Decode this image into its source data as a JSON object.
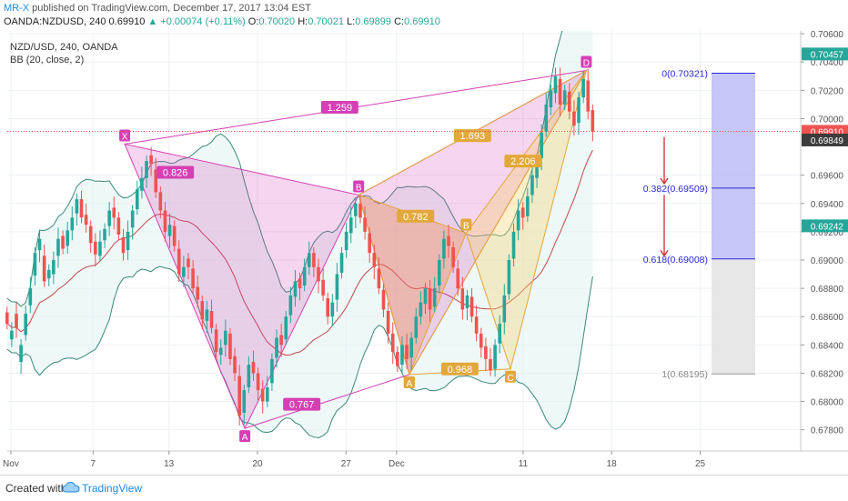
{
  "header": {
    "author": "MR-X",
    "published": " published on TradingView.com, December 17, 2017 13:04 EST",
    "symbol": "OANDA:NZDUSD, 240",
    "last": "0.69910",
    "change": "+0.00074 (+0.11%)",
    "o_label": "O:",
    "o": "0.70020",
    "h_label": "H:",
    "h": "0.70021",
    "l_label": "L:",
    "l": "0.69899",
    "c_label": "C:",
    "c": "0.69910"
  },
  "footer": {
    "created": "Created with",
    "brand": "TradingView"
  },
  "colors": {
    "up": "#26a69a",
    "down": "#ef5350",
    "pattern": "#d63fb4",
    "bat": "#e5a63a",
    "axis_hl": "#26a69a",
    "price_tag": "#ef5350",
    "fib_blue": "#2a2ad2"
  },
  "chart_data": {
    "type": "candlestick",
    "title": "NZD/USD, 240, OANDA",
    "indicator": "BB (20, close, 2)",
    "yaxis": {
      "min": 0.6765,
      "max": 0.7062,
      "ticks": [
        "0.70600",
        "0.70400",
        "0.70200",
        "0.70000",
        "0.69600",
        "0.69400",
        "0.69200",
        "0.69000",
        "0.68800",
        "0.68600",
        "0.68400",
        "0.68200",
        "0.68000",
        "0.67800"
      ]
    },
    "xaxis": {
      "ticks": [
        {
          "label": "Nov",
          "day": 0.5
        },
        {
          "label": "7",
          "day": 7
        },
        {
          "label": "13",
          "day": 13
        },
        {
          "label": "20",
          "day": 20
        },
        {
          "label": "27",
          "day": 27
        },
        {
          "label": "Dec",
          "day": 31
        },
        {
          "label": "11",
          "day": 41
        },
        {
          "label": "18",
          "day": 48
        },
        {
          "label": "25",
          "day": 55
        }
      ]
    },
    "price_labels": [
      {
        "text": "0.70457",
        "value": 0.70457,
        "kind": "green"
      },
      {
        "text": "0.69910",
        "value": 0.6991,
        "kind": "red"
      },
      {
        "text": "0.69849",
        "value": 0.69849,
        "kind": "dark"
      },
      {
        "text": "0.69242",
        "value": 0.69242,
        "kind": "green"
      }
    ],
    "last_price": 0.6991,
    "pattern1": {
      "points": [
        {
          "label": "X",
          "day": 9.5,
          "price": 0.6982
        },
        {
          "label": "A",
          "day": 19,
          "price": 0.6781
        },
        {
          "label": "B",
          "day": 28,
          "price": 0.6946
        },
        {
          "label": "C",
          "day": 32,
          "price": 0.6819
        },
        {
          "label": "D",
          "day": 46,
          "price": 0.7034
        }
      ],
      "ratios": [
        {
          "text": "0.826",
          "day": 13.5,
          "price": 0.6962
        },
        {
          "text": "0.767",
          "day": 23.5,
          "price": 0.6798
        },
        {
          "text": "1.259",
          "day": 26.5,
          "price": 0.7008
        }
      ]
    },
    "pattern2": {
      "points": [
        {
          "label": "X",
          "day": 28,
          "price": 0.6946
        },
        {
          "label": "A",
          "day": 32,
          "price": 0.6819
        },
        {
          "label": "B",
          "day": 36.5,
          "price": 0.6919
        },
        {
          "label": "C",
          "day": 40,
          "price": 0.6823
        },
        {
          "label": "D",
          "day": 46,
          "price": 0.7034
        }
      ],
      "ratios": [
        {
          "text": "0.782",
          "day": 32.5,
          "price": 0.6931
        },
        {
          "text": "0.968",
          "day": 36,
          "price": 0.6823
        },
        {
          "text": "1.693",
          "day": 37,
          "price": 0.6988
        },
        {
          "text": "2.206",
          "day": 41,
          "price": 0.697
        }
      ]
    },
    "fib": {
      "levels": [
        {
          "text": "0(0.70321)",
          "value": 0.70321
        },
        {
          "text": "0.382(0.69509)",
          "value": 0.69509
        },
        {
          "text": "0.618(0.69008)",
          "value": 0.69008
        },
        {
          "text": "1(0.68195)",
          "value": 0.68195
        }
      ]
    },
    "candles_close": [
      0.6855,
      0.685,
      0.6852,
      0.684,
      0.6862,
      0.688,
      0.6905,
      0.6915,
      0.6885,
      0.6893,
      0.69,
      0.6915,
      0.6908,
      0.6921,
      0.693,
      0.6943,
      0.693,
      0.6925,
      0.6912,
      0.6904,
      0.6913,
      0.6922,
      0.6935,
      0.693,
      0.6918,
      0.6905,
      0.692,
      0.6935,
      0.695,
      0.6958,
      0.697,
      0.6968,
      0.6948,
      0.6935,
      0.692,
      0.6925,
      0.691,
      0.689,
      0.6895,
      0.6895,
      0.688,
      0.6872,
      0.6858,
      0.6865,
      0.6852,
      0.6835,
      0.6838,
      0.685,
      0.683,
      0.682,
      0.679,
      0.6808,
      0.6826,
      0.682,
      0.6808,
      0.68,
      0.681,
      0.683,
      0.6845,
      0.684,
      0.686,
      0.6875,
      0.6885,
      0.688,
      0.6895,
      0.6905,
      0.6895,
      0.6885,
      0.6875,
      0.686,
      0.687,
      0.689,
      0.6905,
      0.692,
      0.693,
      0.694,
      0.693,
      0.692,
      0.6905,
      0.6895,
      0.688,
      0.6865,
      0.6848,
      0.6835,
      0.6825,
      0.684,
      0.683,
      0.6845,
      0.686,
      0.687,
      0.688,
      0.6865,
      0.688,
      0.69,
      0.6915,
      0.691,
      0.6895,
      0.688,
      0.6865,
      0.6875,
      0.686,
      0.6848,
      0.6838,
      0.683,
      0.6822,
      0.684,
      0.6855,
      0.6875,
      0.69,
      0.692,
      0.6935,
      0.693,
      0.6945,
      0.696,
      0.697,
      0.699,
      0.701,
      0.702,
      0.703,
      0.701,
      0.702,
      0.7005,
      0.6995,
      0.7015,
      0.7028,
      0.7005,
      0.6991
    ],
    "candles_open_offset": [
      0.0008,
      -0.0006,
      0.001,
      -0.0012,
      -0.0015,
      -0.0012,
      -0.0016,
      -0.0008,
      0.0018,
      -0.0006,
      -0.001,
      -0.0012,
      0.0009,
      -0.0011,
      -0.0009,
      -0.001,
      0.0013,
      0.0007,
      0.0012,
      0.0009,
      -0.001,
      -0.0008,
      -0.0011,
      0.0007,
      0.0012,
      0.0011,
      -0.0013,
      -0.0012,
      -0.0014,
      -0.0009,
      -0.0012,
      0.0006,
      0.0016,
      0.0013,
      0.0015,
      -0.0008,
      0.0014,
      0.0018,
      -0.0007,
      0.0006,
      0.0014,
      0.0009,
      0.0013,
      -0.0008,
      0.0012,
      0.0016,
      -0.0005,
      -0.001,
      0.0018,
      0.0012,
      0.0028,
      -0.0016,
      -0.0016,
      0.0008,
      0.0012,
      0.0009,
      -0.001,
      -0.0017,
      -0.0014,
      0.0007,
      -0.0016,
      -0.0014,
      -0.0011,
      0.0007,
      -0.0013,
      -0.001,
      0.001,
      0.001,
      0.0011,
      0.0013,
      -0.001,
      -0.0018,
      -0.0014,
      -0.0013,
      -0.0011,
      -0.0009,
      0.001,
      0.001,
      0.0014,
      0.001,
      0.0014,
      0.0014,
      0.0016,
      0.0013,
      0.001,
      -0.0014,
      0.001,
      -0.0014,
      -0.0015,
      -0.001,
      -0.0011,
      0.0015,
      -0.0013,
      -0.0018,
      -0.0014,
      0.0007,
      0.0014,
      0.0014,
      0.0015,
      -0.0009,
      0.0014,
      0.0012,
      0.001,
      0.0009,
      0.0008,
      -0.0017,
      -0.0014,
      -0.0019,
      -0.0024,
      -0.0019,
      -0.0014,
      0.0007,
      -0.0014,
      -0.0014,
      -0.0012,
      -0.0018,
      -0.0019,
      -0.0012,
      -0.0012,
      0.0018,
      -0.001,
      0.0014,
      0.001,
      -0.0018,
      -0.0013,
      0.0022,
      0.0015
    ]
  }
}
